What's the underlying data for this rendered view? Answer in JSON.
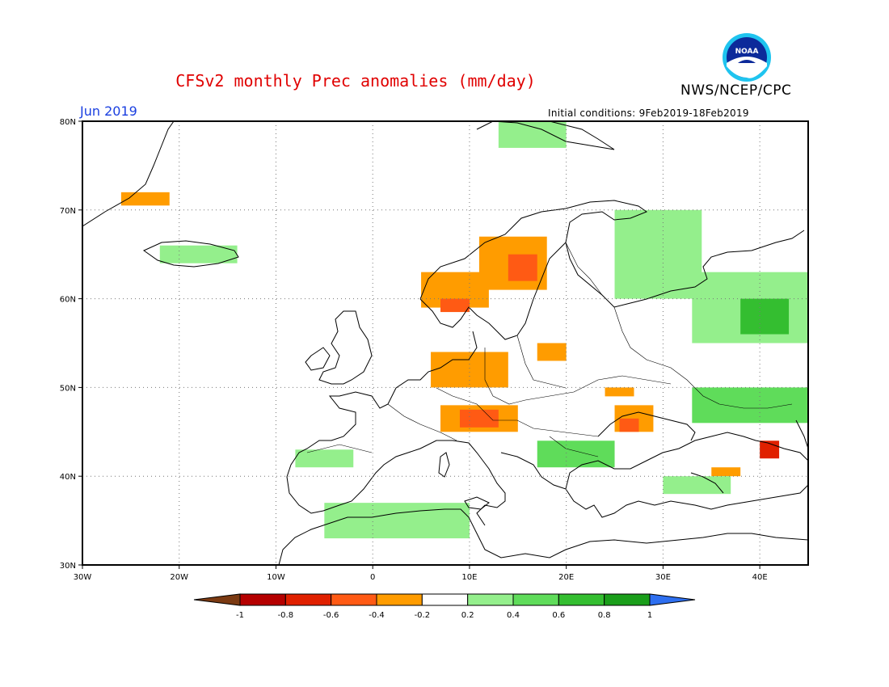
{
  "title": "CFSv2 monthly Prec anomalies (mm/day)",
  "agency": "NWS/NCEP/CPC",
  "logo_text": "NOAA",
  "month": "Jun 2019",
  "initial_conditions": "Initial conditions: 9Feb2019-18Feb2019",
  "map": {
    "lon_range": [
      -30,
      45
    ],
    "lat_range": [
      30,
      80
    ],
    "lat_labels": [
      "80N",
      "70N",
      "60N",
      "50N",
      "40N",
      "30N"
    ],
    "lon_labels": [
      "30W",
      "20W",
      "10W",
      "0",
      "10E",
      "20E",
      "30E",
      "40E"
    ],
    "grid": "dotted"
  },
  "colorbar": {
    "tick_labels": [
      "-1",
      "-0.8",
      "-0.6",
      "-0.4",
      "-0.2",
      "0.2",
      "0.4",
      "0.6",
      "0.8",
      "1"
    ],
    "colors": [
      "#7b3a12",
      "#b50000",
      "#e02000",
      "#ff5a14",
      "#ff9c00",
      "#ffffff",
      "#94ef8c",
      "#5fdc5a",
      "#34be30",
      "#1a9e1a",
      "#2e6ff0"
    ]
  },
  "anomaly_regions": [
    {
      "name": "Scandinavian Mountains dry",
      "lon": [
        11,
        18
      ],
      "lat": [
        61,
        67
      ],
      "class": "-0.4"
    },
    {
      "name": "Central Sweden core",
      "lon": [
        14,
        17
      ],
      "lat": [
        62,
        65
      ],
      "class": "-0.6"
    },
    {
      "name": "Norway coast dry",
      "lon": [
        5,
        12
      ],
      "lat": [
        59,
        63
      ],
      "class": "-0.4"
    },
    {
      "name": "Southern Norway core",
      "lon": [
        7,
        10
      ],
      "lat": [
        58.5,
        60
      ],
      "class": "-0.6"
    },
    {
      "name": "Northern Germany dry",
      "lon": [
        6,
        14
      ],
      "lat": [
        50,
        54
      ],
      "class": "-0.4"
    },
    {
      "name": "Alps dry",
      "lon": [
        7,
        15
      ],
      "lat": [
        45,
        48
      ],
      "class": "-0.4"
    },
    {
      "name": "Alps core",
      "lon": [
        9,
        13
      ],
      "lat": [
        45.5,
        47.5
      ],
      "class": "-0.6"
    },
    {
      "name": "Romania dry",
      "lon": [
        25,
        29
      ],
      "lat": [
        45,
        48
      ],
      "class": "-0.4"
    },
    {
      "name": "Romania core",
      "lon": [
        25.5,
        27.5
      ],
      "lat": [
        45,
        46.5
      ],
      "class": "-0.6"
    },
    {
      "name": "Caucasus dry",
      "lon": [
        40,
        42
      ],
      "lat": [
        42,
        44
      ],
      "class": "-0.8"
    },
    {
      "name": "Greenland dry",
      "lon": [
        -26,
        -21
      ],
      "lat": [
        70.5,
        72
      ],
      "class": "-0.4"
    },
    {
      "name": "Western Russia wet",
      "lon": [
        33,
        45
      ],
      "lat": [
        55,
        63
      ],
      "class": "0.2"
    },
    {
      "name": "Western Russia core",
      "lon": [
        38,
        43
      ],
      "lat": [
        56,
        60
      ],
      "class": "0.6"
    },
    {
      "name": "Southern Russia wet",
      "lon": [
        33,
        45
      ],
      "lat": [
        46,
        50
      ],
      "class": "0.4"
    },
    {
      "name": "Iceland wet",
      "lon": [
        -22,
        -14
      ],
      "lat": [
        64,
        66
      ],
      "class": "0.2"
    },
    {
      "name": "North Africa wet",
      "lon": [
        -5,
        10
      ],
      "lat": [
        33,
        37
      ],
      "class": "0.2"
    },
    {
      "name": "Svalbard wet",
      "lon": [
        13,
        20
      ],
      "lat": [
        77,
        80
      ],
      "class": "0.2"
    },
    {
      "name": "Finland wet",
      "lon": [
        25,
        34
      ],
      "lat": [
        60,
        70
      ],
      "class": "0.2"
    },
    {
      "name": "Balkans wet",
      "lon": [
        17,
        25
      ],
      "lat": [
        41,
        44
      ],
      "class": "0.4"
    },
    {
      "name": "Iberia wet",
      "lon": [
        -8,
        -2
      ],
      "lat": [
        41,
        43
      ],
      "class": "0.2"
    },
    {
      "name": "Turkey dry",
      "lon": [
        35,
        38
      ],
      "lat": [
        40,
        41
      ],
      "class": "-0.4"
    },
    {
      "name": "Black Sea wet",
      "lon": [
        30,
        37
      ],
      "lat": [
        38,
        40
      ],
      "class": "0.2"
    },
    {
      "name": "Poland dry",
      "lon": [
        17,
        20
      ],
      "lat": [
        53,
        55
      ],
      "class": "-0.4"
    },
    {
      "name": "Hungary dry",
      "lon": [
        24,
        27
      ],
      "lat": [
        49,
        50
      ],
      "class": "-0.4"
    }
  ]
}
